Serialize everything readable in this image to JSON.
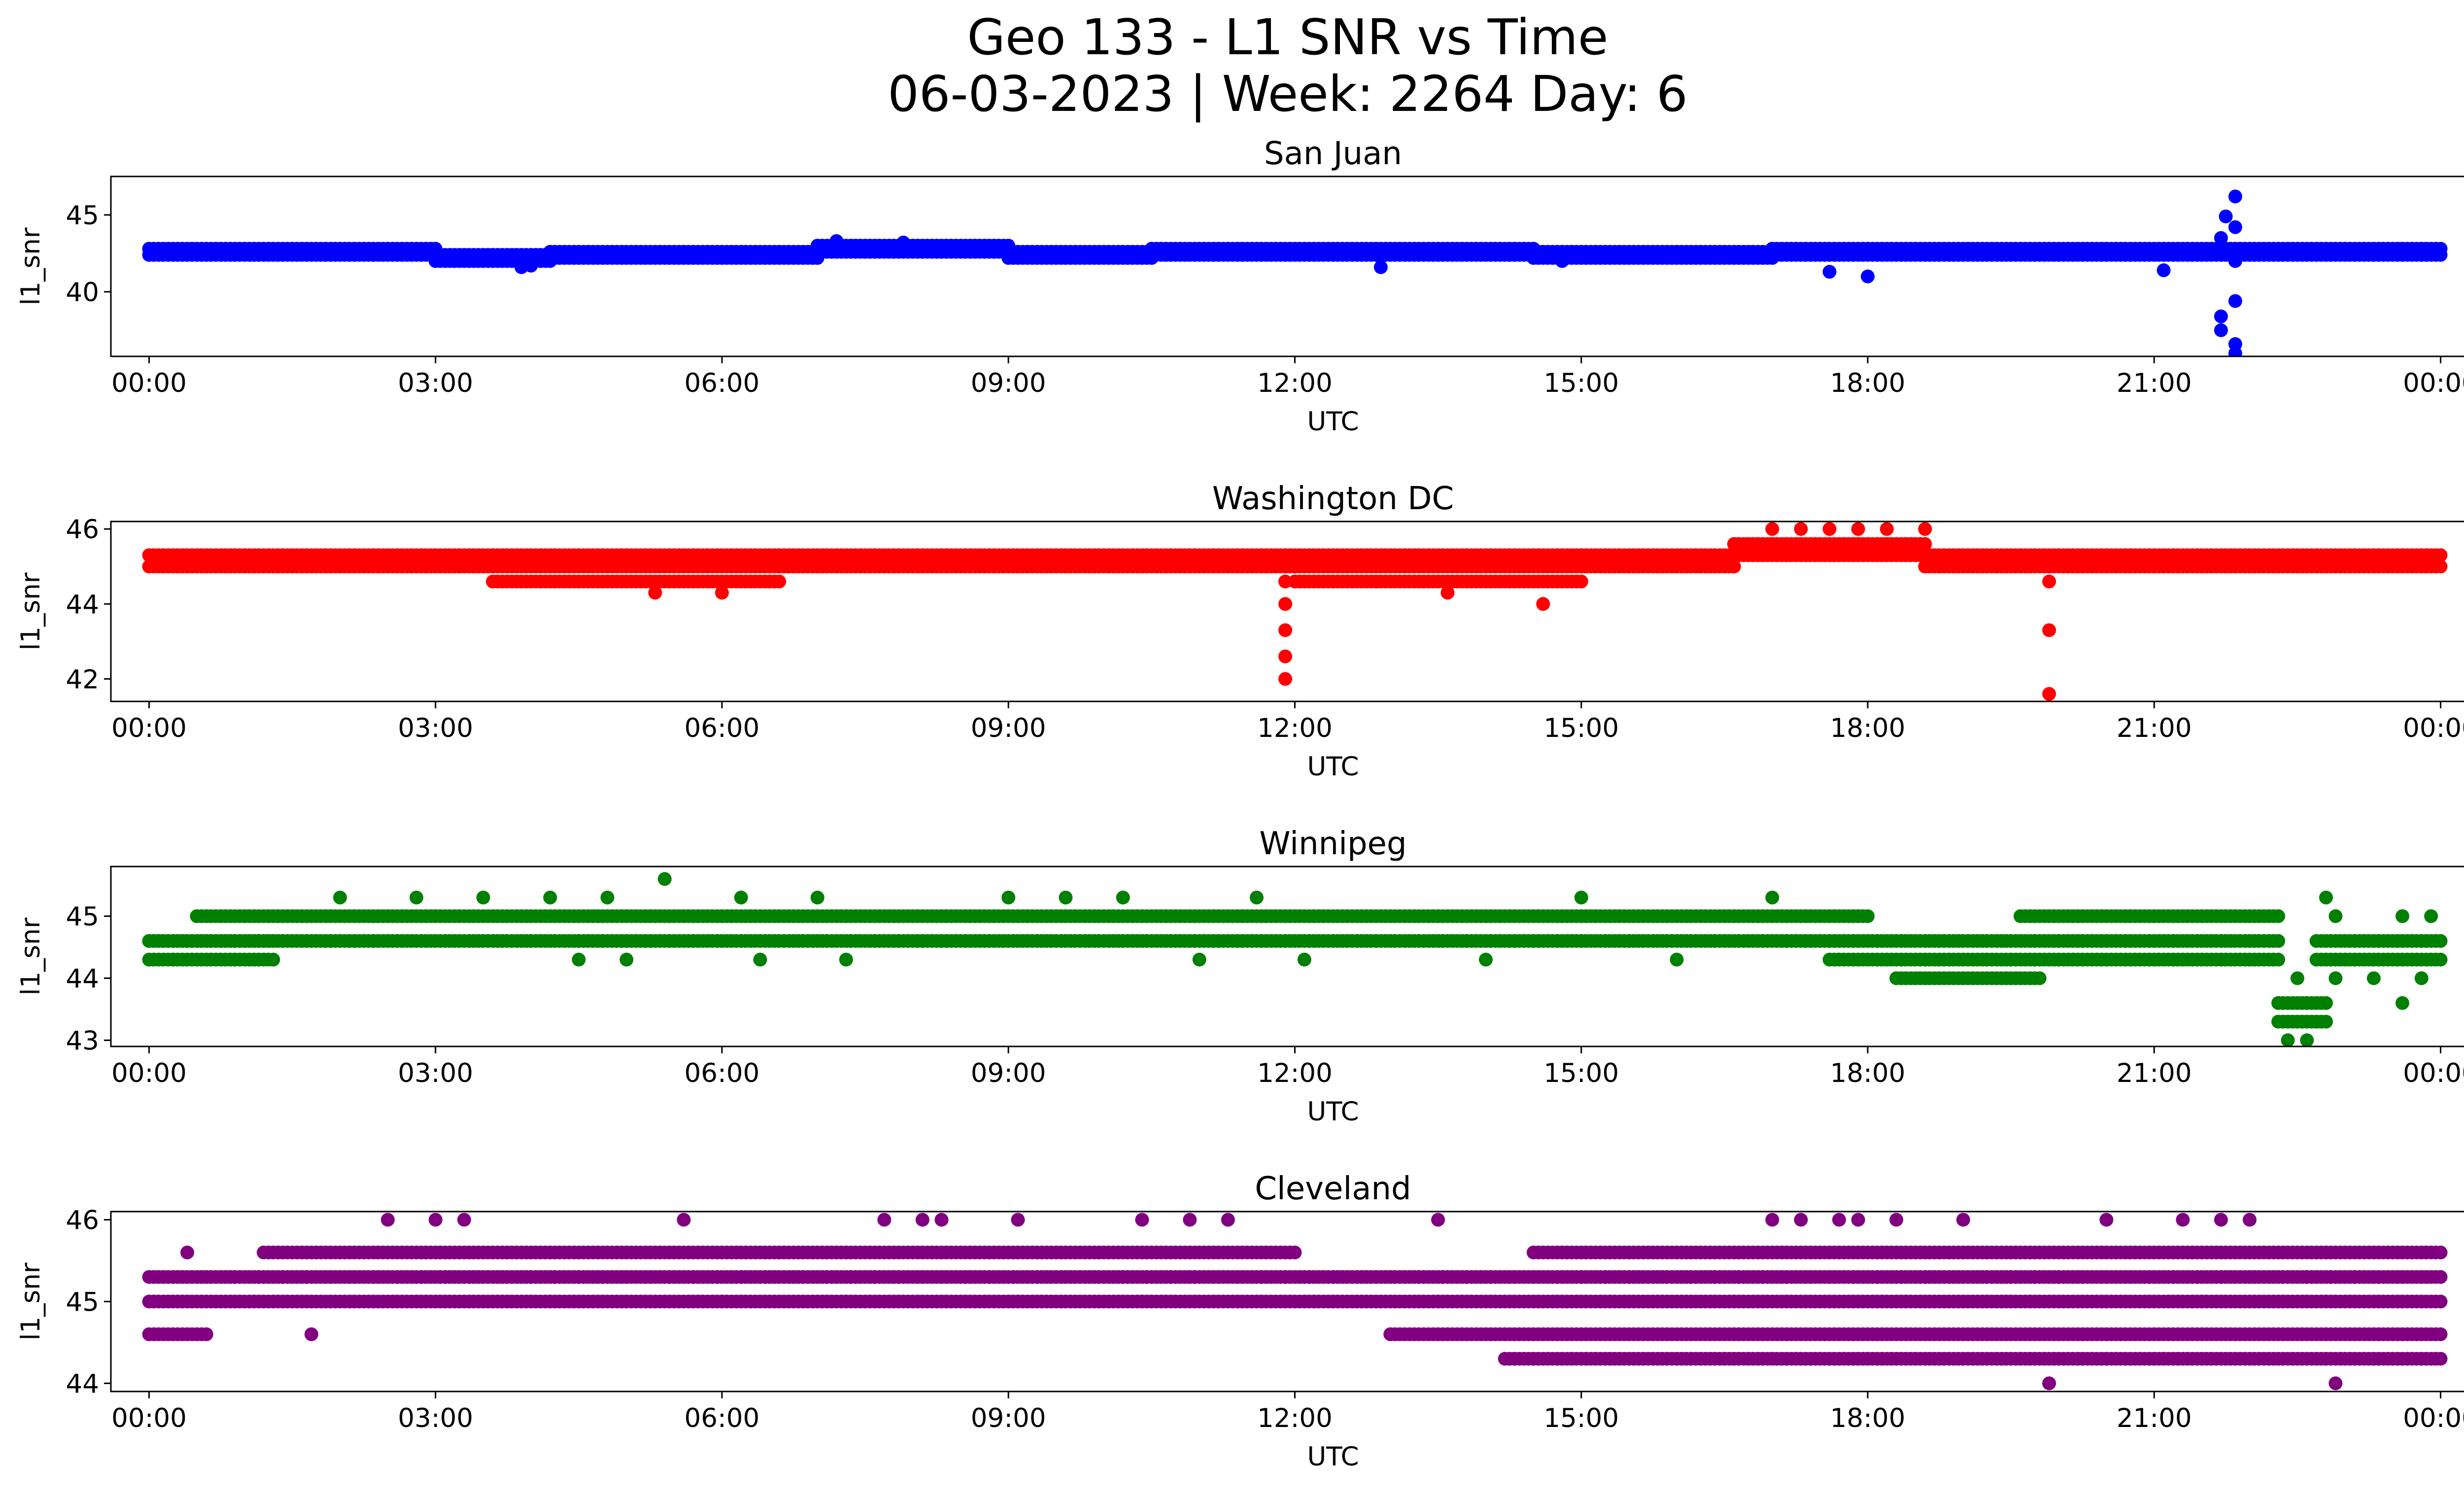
{
  "figure": {
    "title_line1": "Geo 133 - L1 SNR vs Time",
    "title_line2": "06-03-2023 | Week: 2264 Day: 6"
  },
  "chart_data": [
    {
      "type": "scatter",
      "title": "San Juan",
      "xlabel": "UTC",
      "ylabel": "l1_snr",
      "color": "#0000ff",
      "xlim_hours": [
        -0.4,
        25.2
      ],
      "ylim": [
        35.8,
        47.5
      ],
      "y_ticks": [
        40,
        45
      ],
      "x_ticks": [
        "00:00",
        "03:00",
        "06:00",
        "09:00",
        "12:00",
        "15:00",
        "18:00",
        "21:00",
        "00:00"
      ],
      "grid": false,
      "bands": [
        {
          "x0": 0.0,
          "x1": 3.0,
          "values": [
            42.4,
            42.8
          ]
        },
        {
          "x0": 3.0,
          "x1": 4.2,
          "values": [
            42.0,
            42.4
          ]
        },
        {
          "x0": 4.2,
          "x1": 7.0,
          "values": [
            42.2,
            42.6
          ]
        },
        {
          "x0": 7.0,
          "x1": 9.0,
          "values": [
            42.6,
            43.0
          ]
        },
        {
          "x0": 9.0,
          "x1": 10.5,
          "values": [
            42.2,
            42.6
          ]
        },
        {
          "x0": 10.5,
          "x1": 14.5,
          "values": [
            42.4,
            42.8
          ]
        },
        {
          "x0": 14.5,
          "x1": 17.0,
          "values": [
            42.2,
            42.6
          ]
        },
        {
          "x0": 17.0,
          "x1": 24.0,
          "values": [
            42.4,
            42.8
          ]
        }
      ],
      "points": [
        [
          3.2,
          42.0
        ],
        [
          3.9,
          41.6
        ],
        [
          4.0,
          41.7
        ],
        [
          7.2,
          43.3
        ],
        [
          7.9,
          43.2
        ],
        [
          12.9,
          41.6
        ],
        [
          14.8,
          42.0
        ],
        [
          17.6,
          41.3
        ],
        [
          18.0,
          41.0
        ],
        [
          21.1,
          41.4
        ],
        [
          21.7,
          43.5
        ],
        [
          21.75,
          44.9
        ],
        [
          21.85,
          46.2
        ],
        [
          21.85,
          44.2
        ],
        [
          21.85,
          42.0
        ],
        [
          21.7,
          38.4
        ],
        [
          21.7,
          37.5
        ],
        [
          21.85,
          39.4
        ],
        [
          21.85,
          36.6
        ],
        [
          21.85,
          36.0
        ]
      ]
    },
    {
      "type": "scatter",
      "title": "Washington DC",
      "xlabel": "UTC",
      "ylabel": "l1_snr",
      "color": "#ff0000",
      "xlim_hours": [
        -0.4,
        25.2
      ],
      "ylim": [
        41.4,
        46.2
      ],
      "y_ticks": [
        42,
        44,
        46
      ],
      "x_ticks": [
        "00:00",
        "03:00",
        "06:00",
        "09:00",
        "12:00",
        "15:00",
        "18:00",
        "21:00",
        "00:00"
      ],
      "grid": false,
      "bands": [
        {
          "x0": 0.0,
          "x1": 3.6,
          "values": [
            45.0,
            45.3
          ]
        },
        {
          "x0": 3.6,
          "x1": 6.6,
          "values": [
            44.6,
            45.0,
            45.3
          ]
        },
        {
          "x0": 6.6,
          "x1": 12.0,
          "values": [
            45.0,
            45.3
          ]
        },
        {
          "x0": 12.0,
          "x1": 15.0,
          "values": [
            44.6,
            45.0,
            45.3
          ]
        },
        {
          "x0": 15.0,
          "x1": 16.6,
          "values": [
            45.0,
            45.3
          ]
        },
        {
          "x0": 16.6,
          "x1": 18.6,
          "values": [
            45.3,
            45.6
          ]
        },
        {
          "x0": 18.6,
          "x1": 24.0,
          "values": [
            45.0,
            45.3
          ]
        }
      ],
      "points": [
        [
          11.9,
          44.0
        ],
        [
          11.9,
          43.3
        ],
        [
          11.9,
          42.6
        ],
        [
          11.9,
          42.0
        ],
        [
          11.9,
          44.6
        ],
        [
          13.6,
          44.3
        ],
        [
          14.6,
          44.0
        ],
        [
          5.3,
          44.3
        ],
        [
          6.0,
          44.3
        ],
        [
          17.0,
          46.0
        ],
        [
          17.3,
          46.0
        ],
        [
          17.6,
          46.0
        ],
        [
          17.9,
          46.0
        ],
        [
          18.2,
          46.0
        ],
        [
          18.6,
          46.0
        ],
        [
          19.9,
          44.6
        ],
        [
          19.9,
          43.3
        ],
        [
          19.9,
          41.6
        ]
      ]
    },
    {
      "type": "scatter",
      "title": "Winnipeg",
      "xlabel": "UTC",
      "ylabel": "l1_snr",
      "color": "#008000",
      "xlim_hours": [
        -0.4,
        25.2
      ],
      "ylim": [
        42.9,
        45.8
      ],
      "y_ticks": [
        43,
        44,
        45
      ],
      "x_ticks": [
        "00:00",
        "03:00",
        "06:00",
        "09:00",
        "12:00",
        "15:00",
        "18:00",
        "21:00",
        "00:00"
      ],
      "grid": false,
      "bands": [
        {
          "x0": 0.0,
          "x1": 1.3,
          "values": [
            44.3,
            44.6
          ]
        },
        {
          "x0": 0.5,
          "x1": 18.0,
          "values": [
            45.0
          ]
        },
        {
          "x0": 0.0,
          "x1": 22.3,
          "values": [
            44.6
          ]
        },
        {
          "x0": 17.6,
          "x1": 22.3,
          "values": [
            44.3
          ]
        },
        {
          "x0": 19.6,
          "x1": 22.3,
          "values": [
            45.0
          ]
        },
        {
          "x0": 18.3,
          "x1": 19.8,
          "values": [
            44.0
          ]
        },
        {
          "x0": 22.3,
          "x1": 22.8,
          "values": [
            43.6,
            43.3
          ]
        },
        {
          "x0": 22.7,
          "x1": 24.0,
          "values": [
            44.3,
            44.6
          ]
        }
      ],
      "points": [
        [
          2.0,
          45.3
        ],
        [
          2.8,
          45.3
        ],
        [
          3.5,
          45.3
        ],
        [
          4.2,
          45.3
        ],
        [
          4.8,
          45.3
        ],
        [
          5.4,
          45.6
        ],
        [
          6.2,
          45.3
        ],
        [
          7.0,
          45.3
        ],
        [
          9.0,
          45.3
        ],
        [
          9.6,
          45.3
        ],
        [
          10.2,
          45.3
        ],
        [
          11.6,
          45.3
        ],
        [
          15.0,
          45.3
        ],
        [
          17.0,
          45.3
        ],
        [
          4.5,
          44.3
        ],
        [
          5.0,
          44.3
        ],
        [
          6.4,
          44.3
        ],
        [
          7.3,
          44.3
        ],
        [
          11.0,
          44.3
        ],
        [
          12.1,
          44.3
        ],
        [
          14.0,
          44.3
        ],
        [
          16.0,
          44.3
        ],
        [
          22.4,
          43.0
        ],
        [
          22.6,
          43.0
        ],
        [
          22.5,
          44.0
        ],
        [
          22.9,
          44.0
        ],
        [
          23.3,
          44.0
        ],
        [
          23.6,
          43.6
        ],
        [
          22.8,
          45.3
        ],
        [
          22.9,
          45.0
        ],
        [
          23.6,
          45.0
        ],
        [
          23.9,
          45.0
        ],
        [
          23.8,
          44.0
        ]
      ]
    },
    {
      "type": "scatter",
      "title": "Cleveland",
      "xlabel": "UTC",
      "ylabel": "l1_snr",
      "color": "#800080",
      "xlim_hours": [
        -0.4,
        25.2
      ],
      "ylim": [
        43.9,
        46.1
      ],
      "y_ticks": [
        44,
        45,
        46
      ],
      "x_ticks": [
        "00:00",
        "03:00",
        "06:00",
        "09:00",
        "12:00",
        "15:00",
        "18:00",
        "21:00",
        "00:00"
      ],
      "grid": false,
      "bands": [
        {
          "x0": 0.0,
          "x1": 24.0,
          "values": [
            45.0,
            45.3
          ]
        },
        {
          "x0": 0.0,
          "x1": 0.6,
          "values": [
            44.6
          ]
        },
        {
          "x0": 1.2,
          "x1": 12.0,
          "values": [
            45.6
          ]
        },
        {
          "x0": 14.5,
          "x1": 24.0,
          "values": [
            45.6
          ]
        },
        {
          "x0": 13.0,
          "x1": 24.0,
          "values": [
            44.6
          ]
        },
        {
          "x0": 14.2,
          "x1": 24.0,
          "values": [
            44.3
          ]
        }
      ],
      "points": [
        [
          2.5,
          46.0
        ],
        [
          3.0,
          46.0
        ],
        [
          3.3,
          46.0
        ],
        [
          5.6,
          46.0
        ],
        [
          7.7,
          46.0
        ],
        [
          8.1,
          46.0
        ],
        [
          8.3,
          46.0
        ],
        [
          9.1,
          46.0
        ],
        [
          10.4,
          46.0
        ],
        [
          10.9,
          46.0
        ],
        [
          11.3,
          46.0
        ],
        [
          13.5,
          46.0
        ],
        [
          17.0,
          46.0
        ],
        [
          17.3,
          46.0
        ],
        [
          17.7,
          46.0
        ],
        [
          17.9,
          46.0
        ],
        [
          18.3,
          46.0
        ],
        [
          19.0,
          46.0
        ],
        [
          20.5,
          46.0
        ],
        [
          21.3,
          46.0
        ],
        [
          21.7,
          46.0
        ],
        [
          22.0,
          46.0
        ],
        [
          19.9,
          44.0
        ],
        [
          22.9,
          44.0
        ],
        [
          0.4,
          45.6
        ],
        [
          1.7,
          44.6
        ]
      ]
    }
  ]
}
